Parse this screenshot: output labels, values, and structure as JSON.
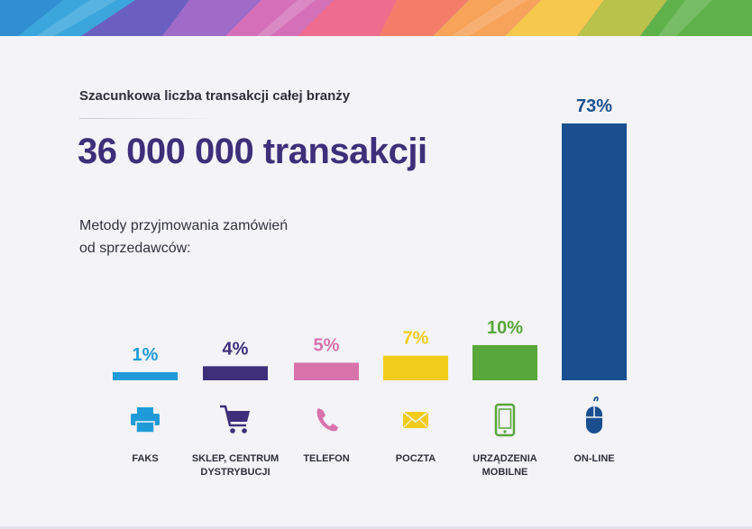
{
  "header": {
    "subtitle": "Szacunkowa liczba transakcji całej branży",
    "total": "36 000 000 transakcji",
    "methods_label_line1": "Metody przyjmowania zamówień",
    "methods_label_line2": "od sprzedawców:"
  },
  "chart_data": {
    "type": "bar",
    "categories": [
      "FAKS",
      "SKLEP, CENTRUM DYSTRYBUCJI",
      "TELEFON",
      "POCZTA",
      "URZĄDZENIA MOBILNE",
      "ON-LINE"
    ],
    "category_lines": [
      [
        "FAKS"
      ],
      [
        "SKLEP, CENTRUM",
        "DYSTRYBUCJI"
      ],
      [
        "TELEFON"
      ],
      [
        "POCZTA"
      ],
      [
        "URZĄDZENIA",
        "MOBILNE"
      ],
      [
        "ON-LINE"
      ]
    ],
    "values": [
      1,
      4,
      5,
      7,
      10,
      73
    ],
    "data_labels": [
      "1%",
      "4%",
      "5%",
      "7%",
      "10%",
      "73%"
    ],
    "unit": "%",
    "colors": [
      "#1f9bd7",
      "#3d2f79",
      "#d873ac",
      "#f2cc1b",
      "#58a73a",
      "#1a4f8f"
    ],
    "icons": [
      "fax-icon",
      "shopping-cart-icon",
      "phone-icon",
      "envelope-icon",
      "mobile-phone-icon",
      "mouse-icon"
    ],
    "ylim": [
      0,
      73
    ],
    "grid": false
  }
}
